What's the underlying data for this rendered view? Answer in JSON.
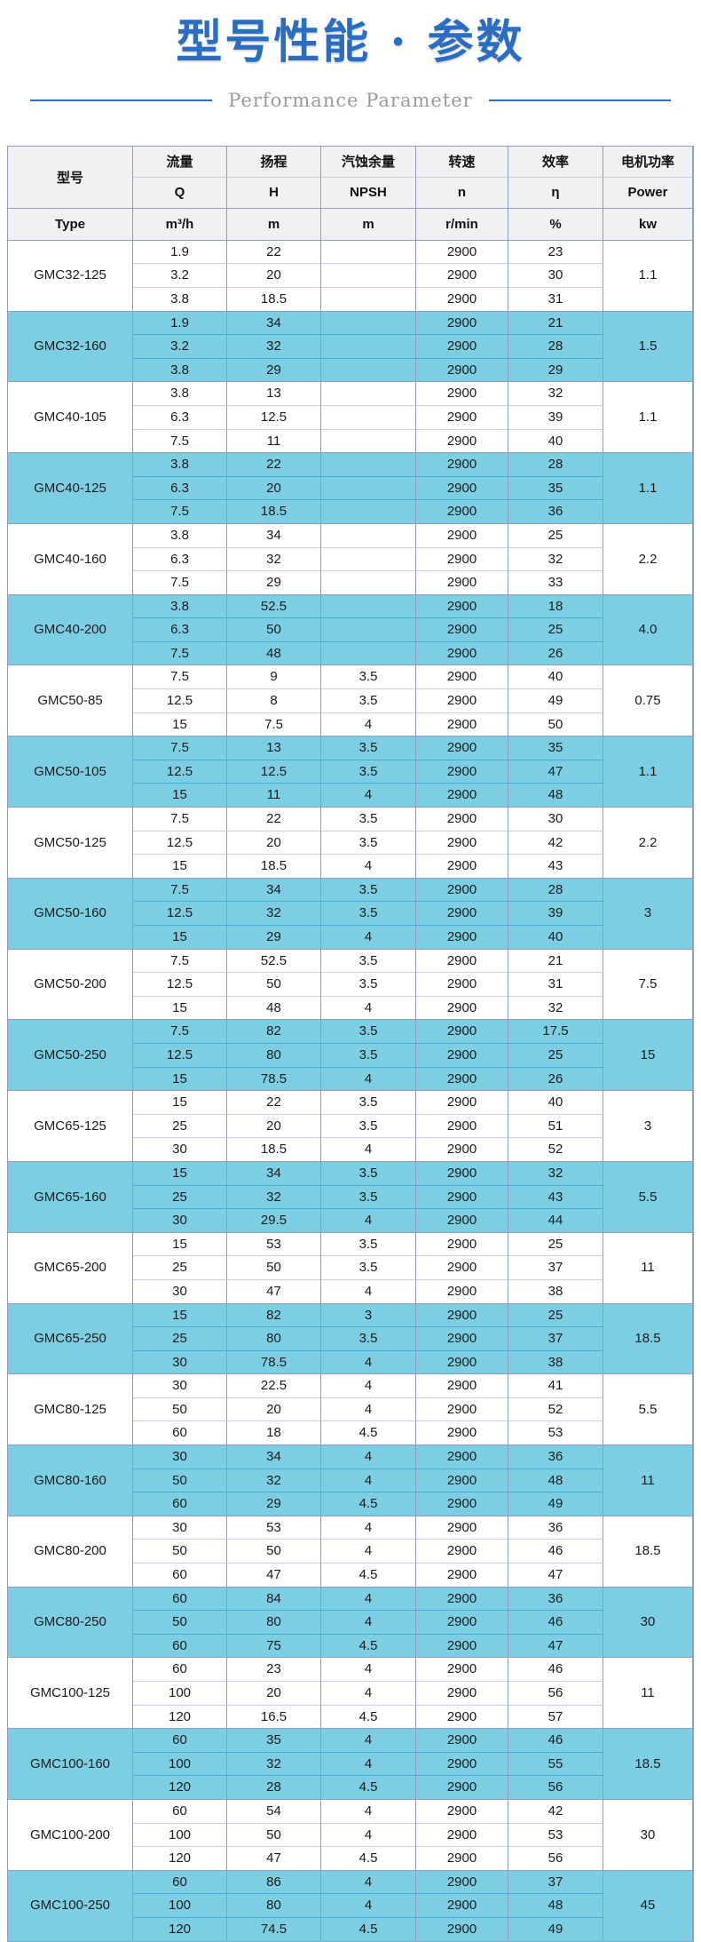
{
  "page": {
    "title": "型号性能 · 参数",
    "subtitle": "Performance Parameter"
  },
  "colors": {
    "title_blue": "#2b6dc1",
    "divider_blue": "#2f6cc4",
    "subtitle_gray": "#9b9b9b",
    "row_highlight_blue": "#7ccfe3",
    "header_gray": "#f1f1f3",
    "grid_line": "#8f9bcc"
  },
  "table": {
    "header": {
      "col1_top": "型号",
      "col1_bottom": "Type",
      "columns": [
        {
          "label": "流量",
          "symbol": "Q",
          "unit": "m³/h"
        },
        {
          "label": "扬程",
          "symbol": "H",
          "unit": "m"
        },
        {
          "label": "汽蚀余量",
          "symbol": "NPSH",
          "unit": "m"
        },
        {
          "label": "转速",
          "symbol": "n",
          "unit": "r/min"
        },
        {
          "label": "效率",
          "symbol": "η",
          "unit": "%"
        },
        {
          "label": "电机功率",
          "symbol": "Power",
          "unit": "kw"
        }
      ]
    },
    "groups": [
      {
        "model": "GMC32-125",
        "power": "1.1",
        "highlight": false,
        "rows": [
          [
            "1.9",
            "22",
            "",
            "2900",
            "23"
          ],
          [
            "3.2",
            "20",
            "",
            "2900",
            "30"
          ],
          [
            "3.8",
            "18.5",
            "",
            "2900",
            "31"
          ]
        ]
      },
      {
        "model": "GMC32-160",
        "power": "1.5",
        "highlight": true,
        "rows": [
          [
            "1.9",
            "34",
            "",
            "2900",
            "21"
          ],
          [
            "3.2",
            "32",
            "",
            "2900",
            "28"
          ],
          [
            "3.8",
            "29",
            "",
            "2900",
            "29"
          ]
        ]
      },
      {
        "model": "GMC40-105",
        "power": "1.1",
        "highlight": false,
        "rows": [
          [
            "3.8",
            "13",
            "",
            "2900",
            "32"
          ],
          [
            "6.3",
            "12.5",
            "",
            "2900",
            "39"
          ],
          [
            "7.5",
            "11",
            "",
            "2900",
            "40"
          ]
        ]
      },
      {
        "model": "GMC40-125",
        "power": "1.1",
        "highlight": true,
        "rows": [
          [
            "3.8",
            "22",
            "",
            "2900",
            "28"
          ],
          [
            "6.3",
            "20",
            "",
            "2900",
            "35"
          ],
          [
            "7.5",
            "18.5",
            "",
            "2900",
            "36"
          ]
        ]
      },
      {
        "model": "GMC40-160",
        "power": "2.2",
        "highlight": false,
        "rows": [
          [
            "3.8",
            "34",
            "",
            "2900",
            "25"
          ],
          [
            "6.3",
            "32",
            "",
            "2900",
            "32"
          ],
          [
            "7.5",
            "29",
            "",
            "2900",
            "33"
          ]
        ]
      },
      {
        "model": "GMC40-200",
        "power": "4.0",
        "highlight": true,
        "rows": [
          [
            "3.8",
            "52.5",
            "",
            "2900",
            "18"
          ],
          [
            "6.3",
            "50",
            "",
            "2900",
            "25"
          ],
          [
            "7.5",
            "48",
            "",
            "2900",
            "26"
          ]
        ]
      },
      {
        "model": "GMC50-85",
        "power": "0.75",
        "highlight": false,
        "rows": [
          [
            "7.5",
            "9",
            "3.5",
            "2900",
            "40"
          ],
          [
            "12.5",
            "8",
            "3.5",
            "2900",
            "49"
          ],
          [
            "15",
            "7.5",
            "4",
            "2900",
            "50"
          ]
        ]
      },
      {
        "model": "GMC50-105",
        "power": "1.1",
        "highlight": true,
        "rows": [
          [
            "7.5",
            "13",
            "3.5",
            "2900",
            "35"
          ],
          [
            "12.5",
            "12.5",
            "3.5",
            "2900",
            "47"
          ],
          [
            "15",
            "11",
            "4",
            "2900",
            "48"
          ]
        ]
      },
      {
        "model": "GMC50-125",
        "power": "2.2",
        "highlight": false,
        "rows": [
          [
            "7.5",
            "22",
            "3.5",
            "2900",
            "30"
          ],
          [
            "12.5",
            "20",
            "3.5",
            "2900",
            "42"
          ],
          [
            "15",
            "18.5",
            "4",
            "2900",
            "43"
          ]
        ]
      },
      {
        "model": "GMC50-160",
        "power": "3",
        "highlight": true,
        "rows": [
          [
            "7.5",
            "34",
            "3.5",
            "2900",
            "28"
          ],
          [
            "12.5",
            "32",
            "3.5",
            "2900",
            "39"
          ],
          [
            "15",
            "29",
            "4",
            "2900",
            "40"
          ]
        ]
      },
      {
        "model": "GMC50-200",
        "power": "7.5",
        "highlight": false,
        "rows": [
          [
            "7.5",
            "52.5",
            "3.5",
            "2900",
            "21"
          ],
          [
            "12.5",
            "50",
            "3.5",
            "2900",
            "31"
          ],
          [
            "15",
            "48",
            "4",
            "2900",
            "32"
          ]
        ]
      },
      {
        "model": "GMC50-250",
        "power": "15",
        "highlight": true,
        "rows": [
          [
            "7.5",
            "82",
            "3.5",
            "2900",
            "17.5"
          ],
          [
            "12.5",
            "80",
            "3.5",
            "2900",
            "25"
          ],
          [
            "15",
            "78.5",
            "4",
            "2900",
            "26"
          ]
        ]
      },
      {
        "model": "GMC65-125",
        "power": "3",
        "highlight": false,
        "rows": [
          [
            "15",
            "22",
            "3.5",
            "2900",
            "40"
          ],
          [
            "25",
            "20",
            "3.5",
            "2900",
            "51"
          ],
          [
            "30",
            "18.5",
            "4",
            "2900",
            "52"
          ]
        ]
      },
      {
        "model": "GMC65-160",
        "power": "5.5",
        "highlight": true,
        "rows": [
          [
            "15",
            "34",
            "3.5",
            "2900",
            "32"
          ],
          [
            "25",
            "32",
            "3.5",
            "2900",
            "43"
          ],
          [
            "30",
            "29.5",
            "4",
            "2900",
            "44"
          ]
        ]
      },
      {
        "model": "GMC65-200",
        "power": "11",
        "highlight": false,
        "rows": [
          [
            "15",
            "53",
            "3.5",
            "2900",
            "25"
          ],
          [
            "25",
            "50",
            "3.5",
            "2900",
            "37"
          ],
          [
            "30",
            "47",
            "4",
            "2900",
            "38"
          ]
        ]
      },
      {
        "model": "GMC65-250",
        "power": "18.5",
        "highlight": true,
        "rows": [
          [
            "15",
            "82",
            "3",
            "2900",
            "25"
          ],
          [
            "25",
            "80",
            "3.5",
            "2900",
            "37"
          ],
          [
            "30",
            "78.5",
            "4",
            "2900",
            "38"
          ]
        ]
      },
      {
        "model": "GMC80-125",
        "power": "5.5",
        "highlight": false,
        "rows": [
          [
            "30",
            "22.5",
            "4",
            "2900",
            "41"
          ],
          [
            "50",
            "20",
            "4",
            "2900",
            "52"
          ],
          [
            "60",
            "18",
            "4.5",
            "2900",
            "53"
          ]
        ]
      },
      {
        "model": "GMC80-160",
        "power": "11",
        "highlight": true,
        "rows": [
          [
            "30",
            "34",
            "4",
            "2900",
            "36"
          ],
          [
            "50",
            "32",
            "4",
            "2900",
            "48"
          ],
          [
            "60",
            "29",
            "4.5",
            "2900",
            "49"
          ]
        ]
      },
      {
        "model": "GMC80-200",
        "power": "18.5",
        "highlight": false,
        "rows": [
          [
            "30",
            "53",
            "4",
            "2900",
            "36"
          ],
          [
            "50",
            "50",
            "4",
            "2900",
            "46"
          ],
          [
            "60",
            "47",
            "4.5",
            "2900",
            "47"
          ]
        ]
      },
      {
        "model": "GMC80-250",
        "power": "30",
        "highlight": true,
        "rows": [
          [
            "60",
            "84",
            "4",
            "2900",
            "36"
          ],
          [
            "50",
            "80",
            "4",
            "2900",
            "46"
          ],
          [
            "60",
            "75",
            "4.5",
            "2900",
            "47"
          ]
        ]
      },
      {
        "model": "GMC100-125",
        "power": "11",
        "highlight": false,
        "rows": [
          [
            "60",
            "23",
            "4",
            "2900",
            "46"
          ],
          [
            "100",
            "20",
            "4",
            "2900",
            "56"
          ],
          [
            "120",
            "16.5",
            "4.5",
            "2900",
            "57"
          ]
        ]
      },
      {
        "model": "GMC100-160",
        "power": "18.5",
        "highlight": true,
        "rows": [
          [
            "60",
            "35",
            "4",
            "2900",
            "46"
          ],
          [
            "100",
            "32",
            "4",
            "2900",
            "55"
          ],
          [
            "120",
            "28",
            "4.5",
            "2900",
            "56"
          ]
        ]
      },
      {
        "model": "GMC100-200",
        "power": "30",
        "highlight": false,
        "rows": [
          [
            "60",
            "54",
            "4",
            "2900",
            "42"
          ],
          [
            "100",
            "50",
            "4",
            "2900",
            "53"
          ],
          [
            "120",
            "47",
            "4.5",
            "2900",
            "56"
          ]
        ]
      },
      {
        "model": "GMC100-250",
        "power": "45",
        "highlight": true,
        "rows": [
          [
            "60",
            "86",
            "4",
            "2900",
            "37"
          ],
          [
            "100",
            "80",
            "4",
            "2900",
            "48"
          ],
          [
            "120",
            "74.5",
            "4.5",
            "2900",
            "49"
          ]
        ]
      }
    ]
  }
}
